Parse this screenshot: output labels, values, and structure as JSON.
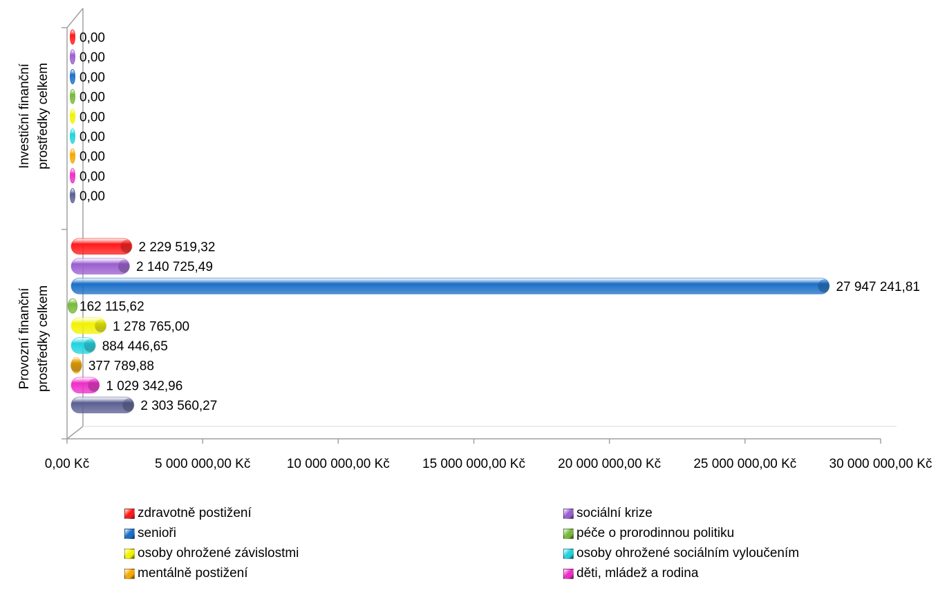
{
  "chart_data": {
    "type": "bar",
    "orientation": "horizontal",
    "categories": [
      "Investiční finanční prostředky celkem",
      "Provozní finanční prostředky celkem"
    ],
    "series": [
      {
        "name": "zdravotně postižení",
        "color": "#FF1A1A",
        "values": [
          0,
          2229519.32
        ],
        "labels": [
          "0,00",
          "2 229 519,32"
        ]
      },
      {
        "name": "sociální krize",
        "color": "#9B5FD0",
        "values": [
          0,
          2140725.49
        ],
        "labels": [
          "0,00",
          "2 140 725,49"
        ]
      },
      {
        "name": "senioři",
        "color": "#1B6FC7",
        "values": [
          0,
          27947241.81
        ],
        "labels": [
          "0,00",
          "27 947 241,81"
        ]
      },
      {
        "name": "péče o prorodinnou politiku",
        "color": "#78B83A",
        "values": [
          0,
          162115.62
        ],
        "labels": [
          "0,00",
          "162 115,62"
        ]
      },
      {
        "name": "osoby ohrožené závislostmi",
        "color": "#F2F200",
        "values": [
          0,
          1278765.0
        ],
        "labels": [
          "0,00",
          "1 278 765,00"
        ]
      },
      {
        "name": "osoby ohrožené sociálním vyloučením",
        "color": "#1FD3E0",
        "values": [
          0,
          884446.65
        ],
        "labels": [
          "0,00",
          "884 446,65"
        ]
      },
      {
        "name": "mentálně postižení",
        "color": "#F5A800",
        "values": [
          0,
          377789.88
        ],
        "labels": [
          "0,00",
          "377 789,88"
        ]
      },
      {
        "name": "děti, mládež a rodina",
        "color": "#EE2DC8",
        "values": [
          0,
          1029342.96
        ],
        "labels": [
          "0,00",
          "1 029 342,96"
        ]
      },
      {
        "name": "",
        "color": "#5A5F92",
        "values": [
          0,
          2303560.27
        ],
        "labels": [
          "0,00",
          "2 303 560,27"
        ]
      }
    ],
    "xlim": [
      0,
      30000000
    ],
    "xticks": [
      0,
      5000000,
      10000000,
      15000000,
      20000000,
      25000000,
      30000000
    ],
    "xtick_labels": [
      "0,00 Kč",
      "5 000 000,00 Kč",
      "10 000 000,00 Kč",
      "15 000 000,00 Kč",
      "20 000 000,00 Kč",
      "25 000 000,00 Kč",
      "30 000 000,00 Kč"
    ],
    "category_labels": [
      [
        "Investiční finanční",
        "prostředky celkem"
      ],
      [
        "Provozní finanční",
        "prostředky celkem"
      ]
    ],
    "grid": false,
    "legend_position": "bottom"
  }
}
